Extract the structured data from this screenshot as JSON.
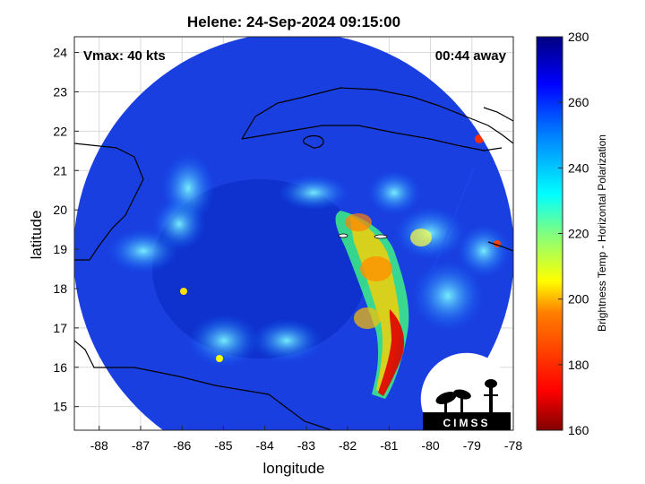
{
  "title": "Helene: 24-Sep-2024 09:15:00",
  "vmax_label": "Vmax: 40 kts",
  "away_label": "00:44 away",
  "xlabel": "longitude",
  "ylabel": "latitude",
  "x_ticks": [
    "-88",
    "-87",
    "-86",
    "-85",
    "-84",
    "-83",
    "-82",
    "-81",
    "-80",
    "-79",
    "-78"
  ],
  "y_ticks": [
    "15",
    "16",
    "17",
    "18",
    "19",
    "20",
    "21",
    "22",
    "23",
    "24"
  ],
  "colorbar": {
    "label": "Brightness Temp - Horizontal Polarization",
    "ticks": [
      "160",
      "180",
      "200",
      "220",
      "240",
      "260",
      "280"
    ],
    "colors": [
      "#800000",
      "#ff0000",
      "#ff8000",
      "#ffff00",
      "#80ff80",
      "#00ffff",
      "#0080ff",
      "#0000ff",
      "#000080"
    ]
  },
  "logo_text": "CIMSS",
  "chart_data": {
    "type": "heatmap",
    "title": "Helene: 24-Sep-2024 09:15:00",
    "xlabel": "longitude",
    "ylabel": "latitude",
    "xlim": [
      -88.6,
      -78
    ],
    "ylim": [
      14.4,
      24.4
    ],
    "colorbar_range": [
      160,
      280
    ],
    "colorbar_label": "Brightness Temp - Horizontal Polarization",
    "swath_center": [
      -83,
      19.4
    ],
    "annotations": [
      "Vmax: 40 kts",
      "00:44 away"
    ]
  }
}
